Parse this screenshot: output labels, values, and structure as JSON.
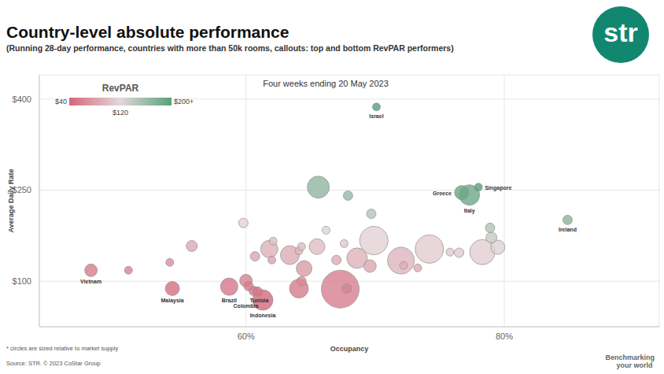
{
  "chart_data": {
    "type": "scatter",
    "title": "Country-level absolute performance",
    "subtitle": "(Running 28-day performance, countries with more than 50k rooms, callouts: top and bottom RevPAR performers)",
    "annotation": "Four weeks ending 20 May 2023",
    "x_label": "Occupancy",
    "y_label": "Average Daily Rate",
    "x": [
      67.3,
      67.8,
      61.3,
      58.7,
      60.0,
      60.2,
      60.6,
      60.9,
      64.1,
      64.3,
      64.5,
      54.3,
      48.0,
      50.9,
      54.1,
      55.8,
      59.8,
      60.7,
      61.8,
      62.1,
      62.0,
      63.4,
      64.1,
      64.3,
      65.5,
      66.2,
      67.0,
      67.6,
      68.6,
      69.9,
      69.6,
      72.0,
      72.2,
      73.3,
      74.2,
      75.8,
      76.5,
      78.3,
      79.5,
      79.0,
      78.9,
      69.7,
      67.9,
      65.6,
      77.3,
      76.7,
      78.0,
      84.9,
      70.1
    ],
    "values": [
      87,
      88,
      69,
      91,
      101,
      92,
      84,
      83,
      88,
      100,
      121,
      88,
      118,
      118,
      131,
      158,
      196,
      141,
      153,
      166,
      135,
      143,
      150,
      157,
      157,
      184,
      135,
      162,
      138,
      167,
      125,
      134,
      126,
      122,
      153,
      148,
      147,
      148,
      156,
      172,
      188,
      211,
      241,
      255,
      242,
      246,
      255,
      201,
      387
    ],
    "sizes": [
      576,
      36,
      169,
      121,
      64,
      36,
      36,
      36,
      144,
      36,
      100,
      81,
      64,
      25,
      25,
      49,
      36,
      36,
      121,
      25,
      25,
      144,
      25,
      25,
      100,
      25,
      36,
      25,
      169,
      324,
      64,
      289,
      25,
      25,
      324,
      25,
      36,
      256,
      81,
      49,
      36,
      36,
      36,
      196,
      169,
      81,
      25,
      36,
      25
    ],
    "labels": [
      null,
      null,
      "Indonesia",
      "Brazil",
      null,
      null,
      "Colombia",
      "Tunisia",
      null,
      null,
      null,
      "Malaysia",
      "Vietnam",
      null,
      null,
      null,
      null,
      null,
      null,
      null,
      null,
      null,
      null,
      null,
      null,
      null,
      null,
      null,
      null,
      null,
      null,
      null,
      null,
      null,
      null,
      null,
      null,
      null,
      null,
      null,
      null,
      null,
      null,
      null,
      "Italy",
      "Greece",
      "Singapore",
      "Ireland",
      "Israel"
    ],
    "xlim": [
      44,
      92
    ],
    "ylim": [
      25,
      440
    ],
    "xticks": [
      {
        "value": 60,
        "label": "60%"
      },
      {
        "value": 80,
        "label": "80%"
      }
    ],
    "yticks": [
      {
        "value": 100,
        "label": "$100"
      },
      {
        "value": 250,
        "label": "$250"
      },
      {
        "value": 400,
        "label": "$400"
      }
    ],
    "grid": true,
    "colorbar": {
      "title": "RevPAR",
      "range": [
        40,
        200
      ],
      "ticks": [
        {
          "value": 40,
          "label": "$40"
        },
        {
          "value": 120,
          "label": "$120"
        },
        {
          "value": 200,
          "label": "$200+"
        }
      ],
      "colors": [
        "#d4687c",
        "#e4d6d9",
        "#58a17b"
      ]
    },
    "notes": [
      "* circles are sized relative to market supply",
      "Source: STR. © 2023 CoStar Group"
    ],
    "logo": "str",
    "tagline": [
      "Benchmarking",
      "your world"
    ]
  }
}
